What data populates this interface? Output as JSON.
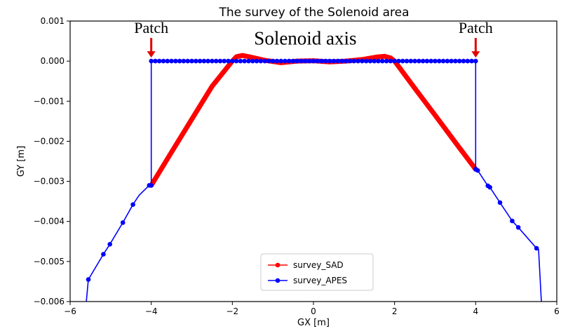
{
  "chart_data": {
    "type": "line",
    "title": "The survey of the Solenoid area",
    "xlabel": "GX [m]",
    "ylabel": "GY [m]",
    "xlim": [
      -6,
      6
    ],
    "ylim": [
      -0.006,
      0.001
    ],
    "xticks": [
      -6,
      -4,
      -2,
      0,
      2,
      4,
      6
    ],
    "xtick_labels": [
      "−6",
      "−4",
      "−2",
      "0",
      "2",
      "4",
      "6"
    ],
    "yticks": [
      0.001,
      0.0,
      -0.001,
      -0.002,
      -0.003,
      -0.004,
      -0.005,
      -0.006
    ],
    "ytick_labels": [
      "0.001",
      "0.000",
      "−0.001",
      "−0.002",
      "−0.003",
      "−0.004",
      "−0.005",
      "−0.006"
    ],
    "grid": false,
    "legend_position": "bottom-center",
    "series": [
      {
        "name": "survey_SAD",
        "color": "#ff0000",
        "style": "thick",
        "x": [
          -4.0,
          -3.5,
          -3.0,
          -2.5,
          -2.0,
          -1.9,
          -1.75,
          -1.55,
          -1.2,
          -0.8,
          -0.4,
          0.0,
          0.4,
          0.8,
          1.2,
          1.55,
          1.75,
          1.9,
          2.0,
          2.5,
          3.0,
          3.5,
          4.0
        ],
        "y": [
          -0.0031,
          -0.00227,
          -0.00145,
          -0.00063,
          0.0,
          0.00011,
          0.00014,
          0.0001,
          2e-05,
          -4e-05,
          0.0,
          1e-05,
          -2e-05,
          0.0,
          4e-05,
          0.0001,
          0.00012,
          8e-05,
          0.0,
          -0.00068,
          -0.00135,
          -0.00203,
          -0.0027
        ]
      },
      {
        "name": "survey_APES",
        "color": "#0000ff",
        "style": "line-markers",
        "x": [
          -5.6,
          -5.55,
          -5.18,
          -5.02,
          -4.7,
          -4.45,
          -4.3,
          -4.05,
          -4.0,
          -4.0,
          -3.0,
          -2.0,
          -1.0,
          0.0,
          1.0,
          2.0,
          3.0,
          4.0,
          4.0,
          4.05,
          4.3,
          4.35,
          4.6,
          4.9,
          5.05,
          5.5,
          5.55,
          5.62
        ],
        "y": [
          -0.006,
          -0.00545,
          -0.00482,
          -0.00457,
          -0.00403,
          -0.00358,
          -0.00335,
          -0.0031,
          -0.0031,
          0.0,
          0.0,
          0.0,
          0.0,
          0.0,
          0.0,
          0.0,
          0.0,
          0.0,
          -0.0027,
          -0.00273,
          -0.00311,
          -0.00315,
          -0.00353,
          -0.00399,
          -0.00415,
          -0.00467,
          -0.0047,
          -0.006
        ],
        "marker_x": [
          -5.55,
          -5.18,
          -5.02,
          -4.7,
          -4.45,
          -4.05,
          -4.0,
          4.0,
          4.05,
          4.3,
          4.35,
          4.6,
          4.9,
          5.05,
          5.5
        ],
        "marker_y": [
          -0.00545,
          -0.00482,
          -0.00457,
          -0.00403,
          -0.00358,
          -0.0031,
          -0.0031,
          -0.0027,
          -0.00273,
          -0.00311,
          -0.00315,
          -0.00353,
          -0.00399,
          -0.00415,
          -0.00467
        ]
      }
    ],
    "annotations": [
      {
        "text": "Solenoid axis",
        "x": -0.2,
        "y": 0.00045
      },
      {
        "text": "Patch",
        "x": -4.0,
        "y": 0.0007,
        "arrow_to_y": 0.0
      },
      {
        "text": "Patch",
        "x": 4.0,
        "y": 0.0007,
        "arrow_to_y": 0.0
      }
    ]
  }
}
